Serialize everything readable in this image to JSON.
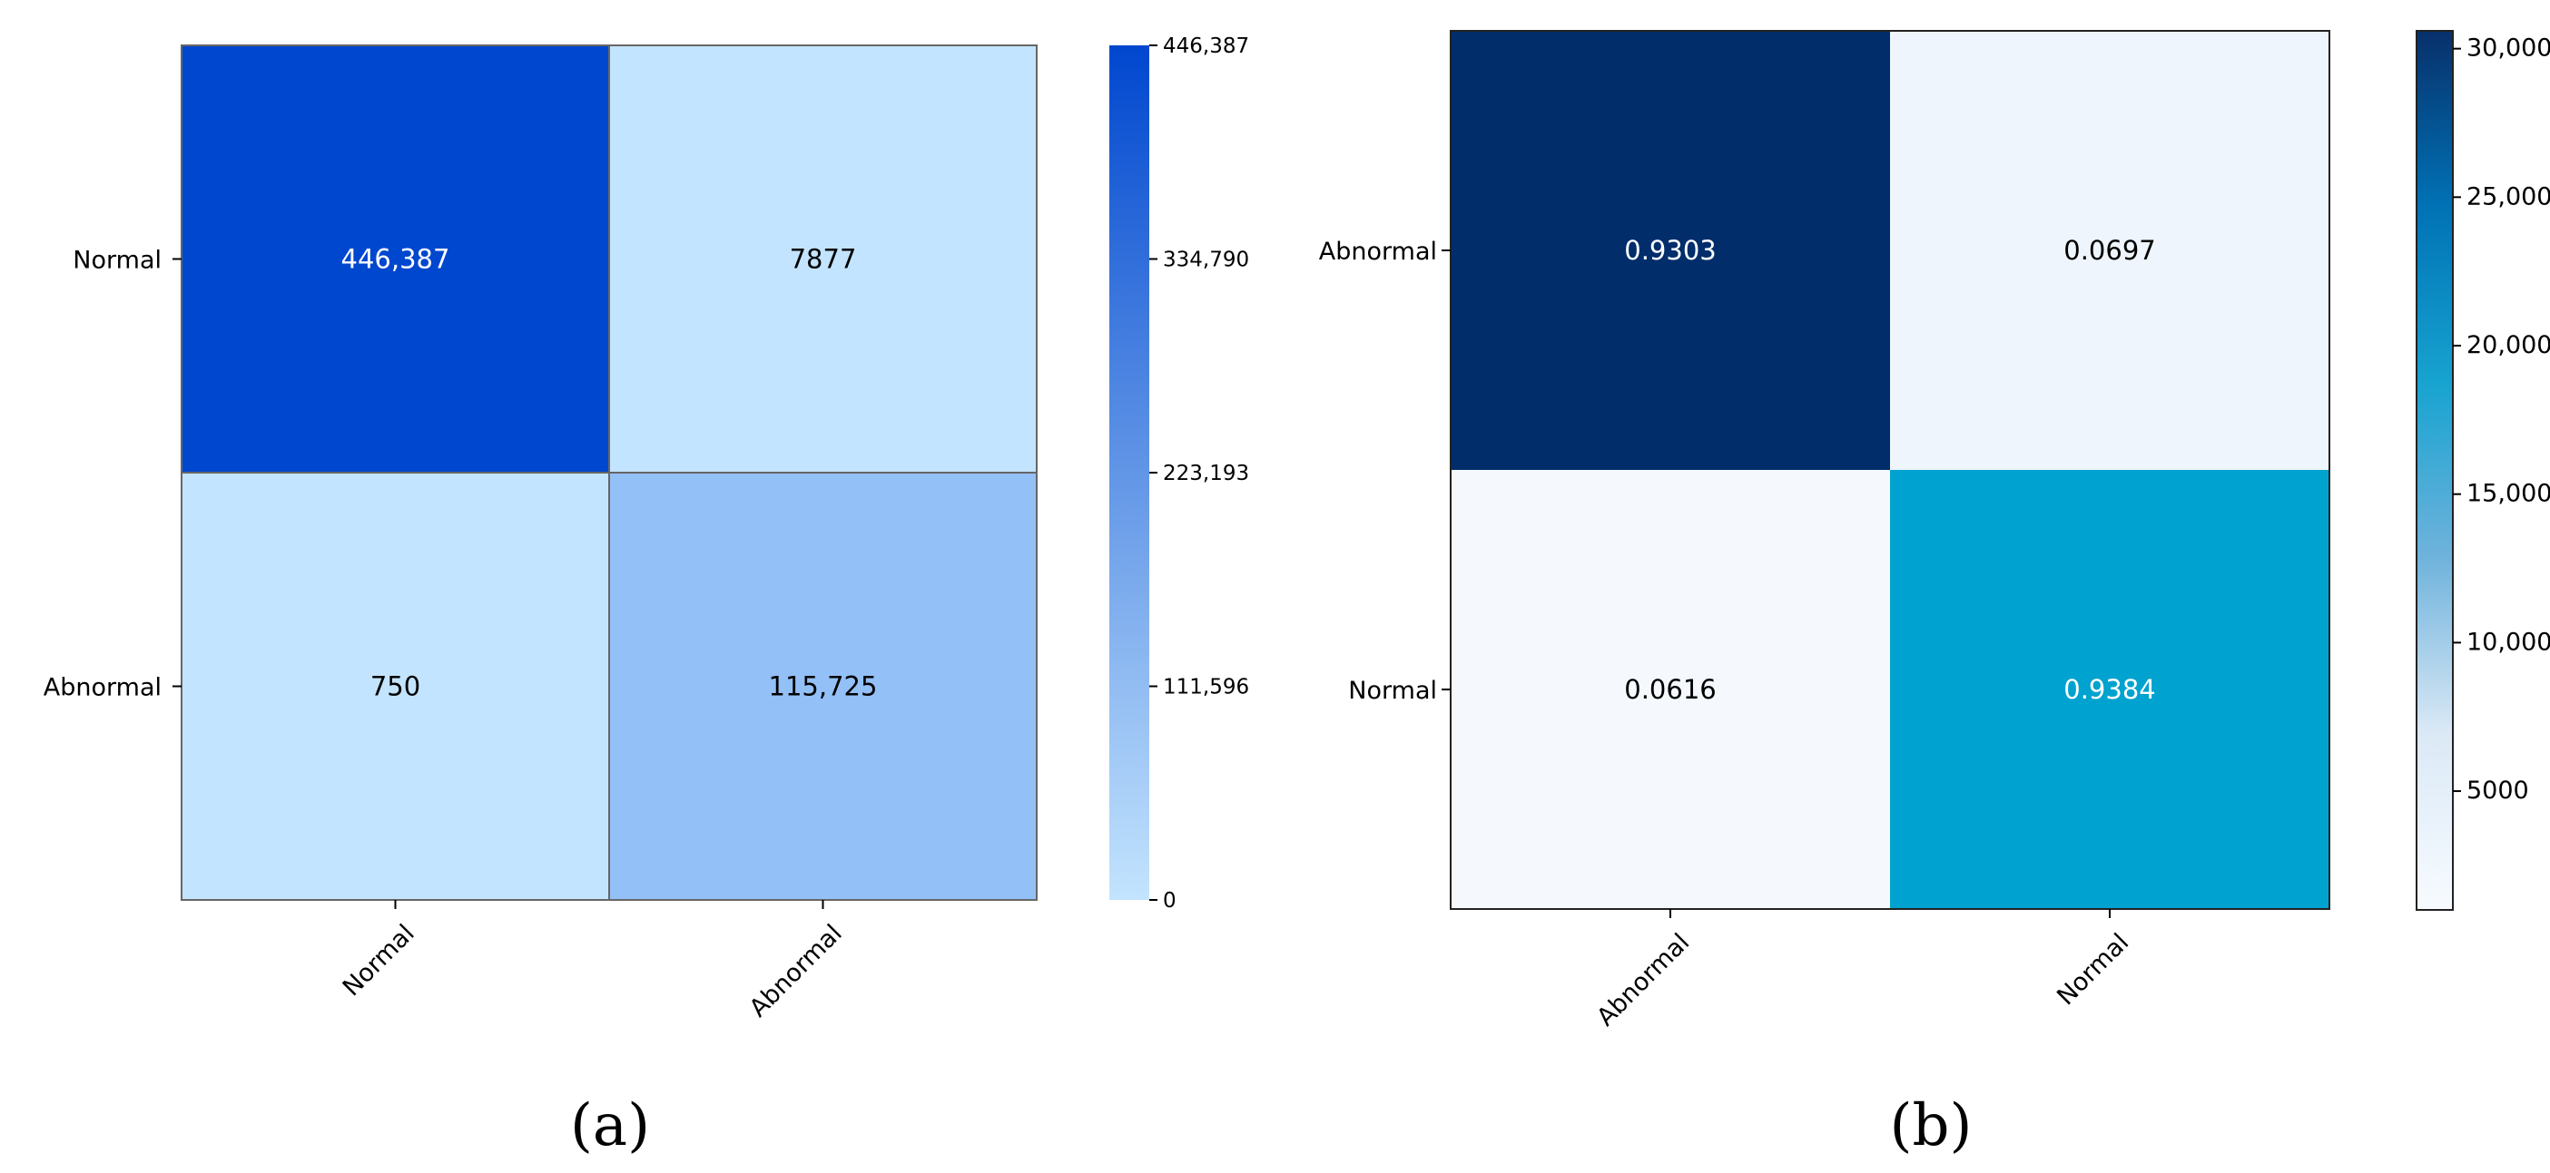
{
  "panels": [
    {
      "caption": "(a)",
      "chart_data": {
        "type": "heatmap",
        "rows": [
          "Normal",
          "Abnormal"
        ],
        "columns": [
          "Normal",
          "Abnormal"
        ],
        "values": [
          [
            446387,
            7877
          ],
          [
            750,
            115725
          ]
        ],
        "cell_labels": [
          [
            "446,387",
            "7877"
          ],
          [
            "750",
            "115,725"
          ]
        ],
        "cell_colors": [
          [
            "#0047cf",
            "#c3e4fe"
          ],
          [
            "#c3e4fe",
            "#93c0f6"
          ]
        ],
        "cell_text_colors": [
          [
            "#ffffff",
            "#000000"
          ],
          [
            "#000000",
            "#000000"
          ]
        ],
        "colorbar": {
          "range": [
            0,
            446387
          ],
          "ticks": [
            0,
            111596,
            223193,
            334790,
            446387
          ],
          "tick_labels": [
            "0",
            "111,596",
            "223,193",
            "334,790",
            "446,387"
          ],
          "colors": [
            "#c3e4fe",
            "#0047cf"
          ]
        }
      }
    },
    {
      "caption": "(b)",
      "chart_data": {
        "type": "heatmap",
        "rows": [
          "Abnormal",
          "Normal"
        ],
        "columns": [
          "Abnormal",
          "Normal"
        ],
        "values": [
          [
            0.9303,
            0.0697
          ],
          [
            0.0616,
            0.9384
          ]
        ],
        "cell_labels": [
          [
            "0.9303",
            "0.0697"
          ],
          [
            "0.0616",
            "0.9384"
          ]
        ],
        "cell_colors": [
          [
            "#012d6b",
            "#eef5fc"
          ],
          [
            "#f5f9fe",
            "#00a2cf"
          ]
        ],
        "cell_text_colors": [
          [
            "#ffffff",
            "#000000"
          ],
          [
            "#000000",
            "#ffffff"
          ]
        ],
        "colorbar": {
          "range": [
            1000,
            30600
          ],
          "ticks": [
            5000,
            10000,
            15000,
            20000,
            25000,
            30000
          ],
          "tick_labels": [
            "5000",
            "10,000",
            "15,000",
            "20,000",
            "25,000",
            "30,000"
          ],
          "colors": [
            "#f7fbff",
            "#dbe9f6",
            "#6fb3dc",
            "#17a3d0",
            "#0072b5",
            "#08306b"
          ]
        }
      }
    }
  ]
}
